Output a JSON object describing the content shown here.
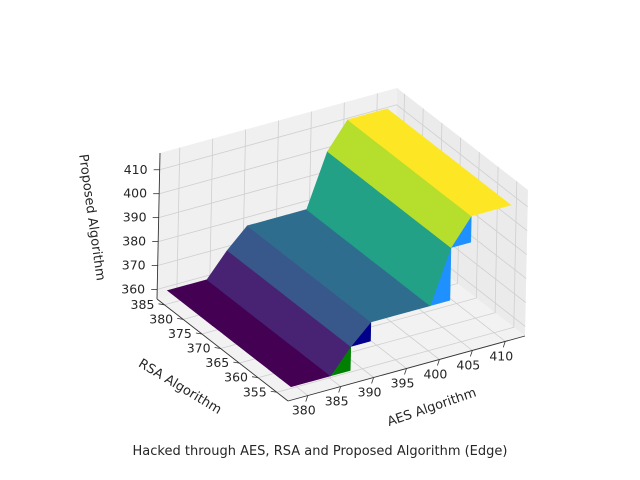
{
  "chart_data": {
    "type": "surface",
    "title": "",
    "caption": "Hacked through AES, RSA and Proposed Algorithm (Edge)",
    "xlabel": "AES Algorithm",
    "ylabel": "RSA Algorithm",
    "zlabel": "Proposed Algorithm",
    "x_ticks": [
      "380",
      "385",
      "390",
      "395",
      "400",
      "405",
      "410"
    ],
    "y_ticks": [
      "355",
      "360",
      "365",
      "370",
      "375",
      "380",
      "385"
    ],
    "z_ticks": [
      "360",
      "370",
      "380",
      "390",
      "400",
      "410"
    ],
    "xlim": [
      377,
      413
    ],
    "ylim": [
      352,
      387
    ],
    "zlim": [
      356,
      417
    ],
    "grid": true,
    "colormap": "viridis",
    "x": [
      378,
      381,
      384,
      387,
      390,
      393,
      396,
      399,
      402,
      405,
      408,
      411
    ],
    "y": [
      353,
      356,
      359,
      362,
      365,
      368,
      371,
      374,
      377,
      380,
      383,
      386
    ],
    "z_levels": [
      360,
      360,
      360,
      370,
      378,
      378,
      378,
      378,
      400,
      411,
      411,
      411
    ],
    "side_colors": [
      "#008000",
      "#00008b",
      "#1e90ff",
      "#add8e6"
    ]
  }
}
